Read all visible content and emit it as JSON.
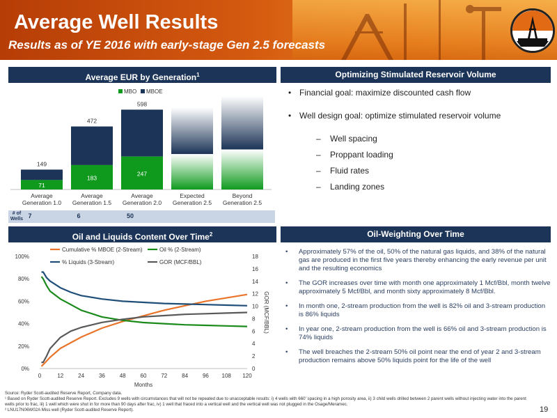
{
  "header": {
    "title": "Average Well Results",
    "subtitle": "Results as of YE 2016 with early-stage Gen 2.5 forecasts"
  },
  "colors": {
    "navy": "#1c3457",
    "green": "#0f9a1e",
    "orange": "#e9742a",
    "dark_green": "#1a8a1a",
    "blue_line": "#1f4e79",
    "gray_line": "#595959",
    "wells_row": "#c9d4e4"
  },
  "sections": {
    "eur": {
      "title": "Average EUR by Generation",
      "sup": "1"
    },
    "opt": {
      "title": "Optimizing Stimulated Reservoir Volume"
    },
    "content": {
      "title": "Oil and Liquids Content Over Time",
      "sup": "2"
    },
    "weighting": {
      "title": "Oil-Weighting Over Time"
    }
  },
  "wells_row": {
    "label": "# of Wells",
    "values": [
      "7",
      "6",
      "50"
    ]
  },
  "opt_bullets": [
    {
      "level": "main",
      "text": "Financial goal: maximize discounted cash flow"
    },
    {
      "level": "main",
      "text": "Well design goal: optimize stimulated reservoir volume"
    },
    {
      "level": "sub",
      "text": "Well spacing"
    },
    {
      "level": "sub",
      "text": "Proppant loading"
    },
    {
      "level": "sub",
      "text": "Fluid rates"
    },
    {
      "level": "sub",
      "text": "Landing zones"
    }
  ],
  "oil_bullets": [
    "Approximately 57% of the oil, 50% of the natural gas liquids, and 38% of the natural gas are produced in the first five years thereby enhancing the early revenue per unit and the resulting economics",
    "The GOR increases over time with month one approximately 1 Mcf/Bbl, month twelve approximately 5 Mcf/Bbl, and month sixty approximately 8 Mcf/Bbl.",
    "In month one, 2-stream production from the well is 82% oil and 3-stream production is 86% liquids",
    "In year one, 2-stream production from the well is 66% oil and 3-stream production is 74% liquids",
    "The well breaches the 2-stream 50% oil point near the end of year 2 and 3-stream production remains above 50% liquids point for the life of the well"
  ],
  "chart_data": [
    {
      "type": "bar",
      "stacked": true,
      "legend": [
        "MBO",
        "MBOE"
      ],
      "legend_placement": "top",
      "categories": [
        "Average Generation 1.0",
        "Average Generation 1.5",
        "Average Generation 2.0",
        "Expected Generation 2.5",
        "Beyond Generation 2.5"
      ],
      "series": [
        {
          "name": "MBO",
          "values": [
            71,
            183,
            247,
            null,
            null
          ],
          "labels": [
            "71",
            "183",
            "247",
            "",
            ""
          ]
        },
        {
          "name": "MBOE",
          "totals": [
            149,
            472,
            598,
            null,
            null
          ],
          "labels": [
            "149",
            "472",
            "598",
            "",
            ""
          ]
        }
      ],
      "forecast_bars": [
        {
          "category": "Expected Generation 2.5",
          "approx_total": 615,
          "approx_mbo": 265
        },
        {
          "category": "Beyond Generation 2.5",
          "approx_total": 700,
          "approx_mbo": 300
        }
      ],
      "ylim": [
        0,
        720
      ]
    },
    {
      "type": "line",
      "xlabel": "Months",
      "ylabel": "",
      "y2label": "GOR (MCF/BBL)",
      "x_ticks": [
        0,
        12,
        24,
        36,
        48,
        60,
        72,
        84,
        96,
        108,
        120
      ],
      "y_ticks": [
        "0%",
        "20%",
        "40%",
        "60%",
        "80%",
        "100%"
      ],
      "y2_ticks": [
        0,
        2,
        4,
        6,
        8,
        10,
        12,
        14,
        16,
        18
      ],
      "ylim": [
        0,
        1
      ],
      "y2lim": [
        0,
        18
      ],
      "xlim": [
        0,
        120
      ],
      "legend_placement": "top",
      "series": [
        {
          "name": "Cumulative % MBOE (2-Stream)",
          "axis": "left",
          "x": [
            1,
            3,
            6,
            12,
            24,
            36,
            48,
            60,
            72,
            84,
            96,
            108,
            120
          ],
          "y": [
            0.02,
            0.05,
            0.1,
            0.18,
            0.28,
            0.36,
            0.42,
            0.47,
            0.52,
            0.56,
            0.6,
            0.63,
            0.66
          ]
        },
        {
          "name": "Oil % (2-Stream)",
          "axis": "left",
          "x": [
            1,
            2,
            4,
            6,
            12,
            18,
            24,
            36,
            48,
            60,
            72,
            84,
            96,
            108,
            120
          ],
          "y": [
            0.82,
            0.8,
            0.74,
            0.69,
            0.62,
            0.57,
            0.52,
            0.46,
            0.43,
            0.41,
            0.4,
            0.39,
            0.385,
            0.38,
            0.375
          ]
        },
        {
          "name": "% Liquids (3-Stream)",
          "axis": "left",
          "x": [
            1,
            2,
            4,
            6,
            12,
            18,
            24,
            36,
            48,
            60,
            72,
            84,
            96,
            108,
            120
          ],
          "y": [
            0.86,
            0.86,
            0.81,
            0.78,
            0.72,
            0.68,
            0.65,
            0.62,
            0.6,
            0.59,
            0.58,
            0.575,
            0.57,
            0.565,
            0.56
          ]
        },
        {
          "name": "GOR (MCF/BBL)",
          "axis": "right",
          "x": [
            1,
            2,
            4,
            6,
            12,
            18,
            24,
            36,
            48,
            60,
            72,
            84,
            96,
            108,
            120
          ],
          "y": [
            1.0,
            1.0,
            2.0,
            3.2,
            5.0,
            6.0,
            6.6,
            7.4,
            7.9,
            8.3,
            8.5,
            8.7,
            8.8,
            8.9,
            9.0
          ]
        }
      ]
    }
  ],
  "footnotes": [
    "Source: Ryder Scott-audited Reserve Report, Company data.",
    "¹ Based on Ryder Scott-audited Reserve Report. Excludes 9 wells with circumstances that will not be repeated due to unacceptable results: i) 4 wells with 660' spacing in a high porosity area, ii) 3 child wells drilled between 2 parent wells without injecting water into the parent wells prior to frac, iii) 1 well which were shut in for more than 90 days after frac, iv) 1 well that fraced into a vertical well and the vertical well was not plugged in the Osage/Meramec.",
    "² LNU17N06W02A Miss well (Ryder Scott-audited Reserve Report)."
  ],
  "page_number": "19"
}
